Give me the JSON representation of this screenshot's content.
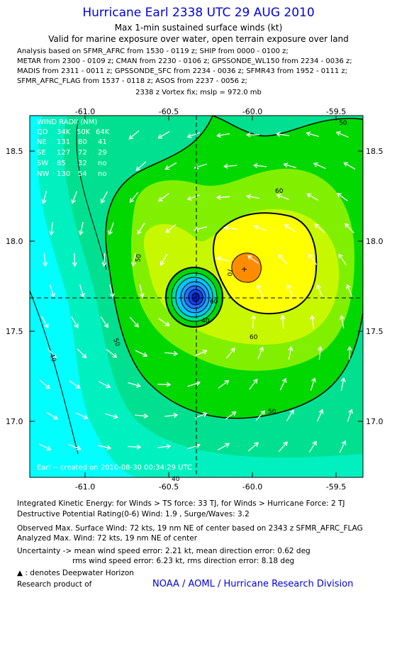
{
  "header": {
    "title": "Hurricane Earl 2338 UTC 29 AUG 2010",
    "subtitle1": "Max 1-min sustained surface winds (kt)",
    "subtitle2": "Valid for marine exposure over water, open terrain exposure over land",
    "analysis_lines": [
      "Analysis based on SFMR_AFRC from 1530 - 0119 z; SHIP from 0000 - 0100 z;",
      "METAR from 2300 - 0109 z; CMAN from 2230 - 0106 z; GPSSONDE_WL150 from 2234 - 0036 z;",
      "MADIS from 2311 - 0011 z; GPSSONDE_SFC from 2234 - 0036 z; SFMR43 from 1952 - 0111 z;",
      "SFMR_AFRC_FLAG from 1537 - 0118 z; ASOS from 2237 - 0056 z;"
    ],
    "vortex_fix": "2338 z Vortex fix; mslp = 972.0 mb"
  },
  "map": {
    "lon_ticks": [
      "-61.0",
      "-60.5",
      "-60.0",
      "-59.5"
    ],
    "lat_ticks": [
      "18.5",
      "18.0",
      "17.5",
      "17.0"
    ],
    "lon_range": [
      -61.3,
      -59.3
    ],
    "lat_range": [
      16.68,
      18.7
    ],
    "center": {
      "lon": -60.33,
      "lat": 17.69
    },
    "max_wind_marker": {
      "lon": -60.0,
      "lat": 17.84
    },
    "contour_labels": [
      "50",
      "60",
      "70",
      "60",
      "50",
      "40",
      "50",
      "60",
      "40",
      "50",
      "40"
    ],
    "wind_radii_table": {
      "title": "WIND RADII (NM)",
      "header": [
        "QD",
        "34K",
        "50K",
        "64K"
      ],
      "rows": [
        [
          "NE",
          "131",
          "80",
          "41"
        ],
        [
          "SE",
          "127",
          "72",
          "29"
        ],
        [
          "SW",
          "85",
          "32",
          "no"
        ],
        [
          "NW",
          "130",
          "54",
          "no"
        ]
      ]
    },
    "credit": "Earl -- created on 2010-08-30 00:34:29 UTC",
    "colors": {
      "c30": "#00ffff",
      "c40": "#00f0c0",
      "c45": "#00e090",
      "c50": "#00d800",
      "c55": "#80f000",
      "c60": "#c8f800",
      "c65": "#ffff00",
      "c70": "#ff8c00"
    }
  },
  "footer": {
    "ike": "Integrated Kinetic Energy:  for Winds > TS force: 33 TJ,  for Winds > Hurricane Force: 2 TJ",
    "dpr": "Destructive Potential Rating(0-6)   Wind: 1.9 , Surge/Waves: 3.2",
    "observed": "Observed Max. Surface Wind: 72 kts, 19 nm NE of center based on 2343 z SFMR_AFRC_FLAG",
    "analyzed": "Analyzed Max. Wind: 72 kts, 19 nm NE of center",
    "uncertainty1": "Uncertainty -> mean wind speed error: 2.21 kt,   mean direction error: 0.62 deg",
    "uncertainty2": "rms wind speed error: 6.23 kt,   rms direction error: 8.18 deg",
    "deepwater": "▲ : denotes Deepwater Horizon",
    "research": "Research product of",
    "noaa": "NOAA / AOML / Hurricane Research Division"
  }
}
